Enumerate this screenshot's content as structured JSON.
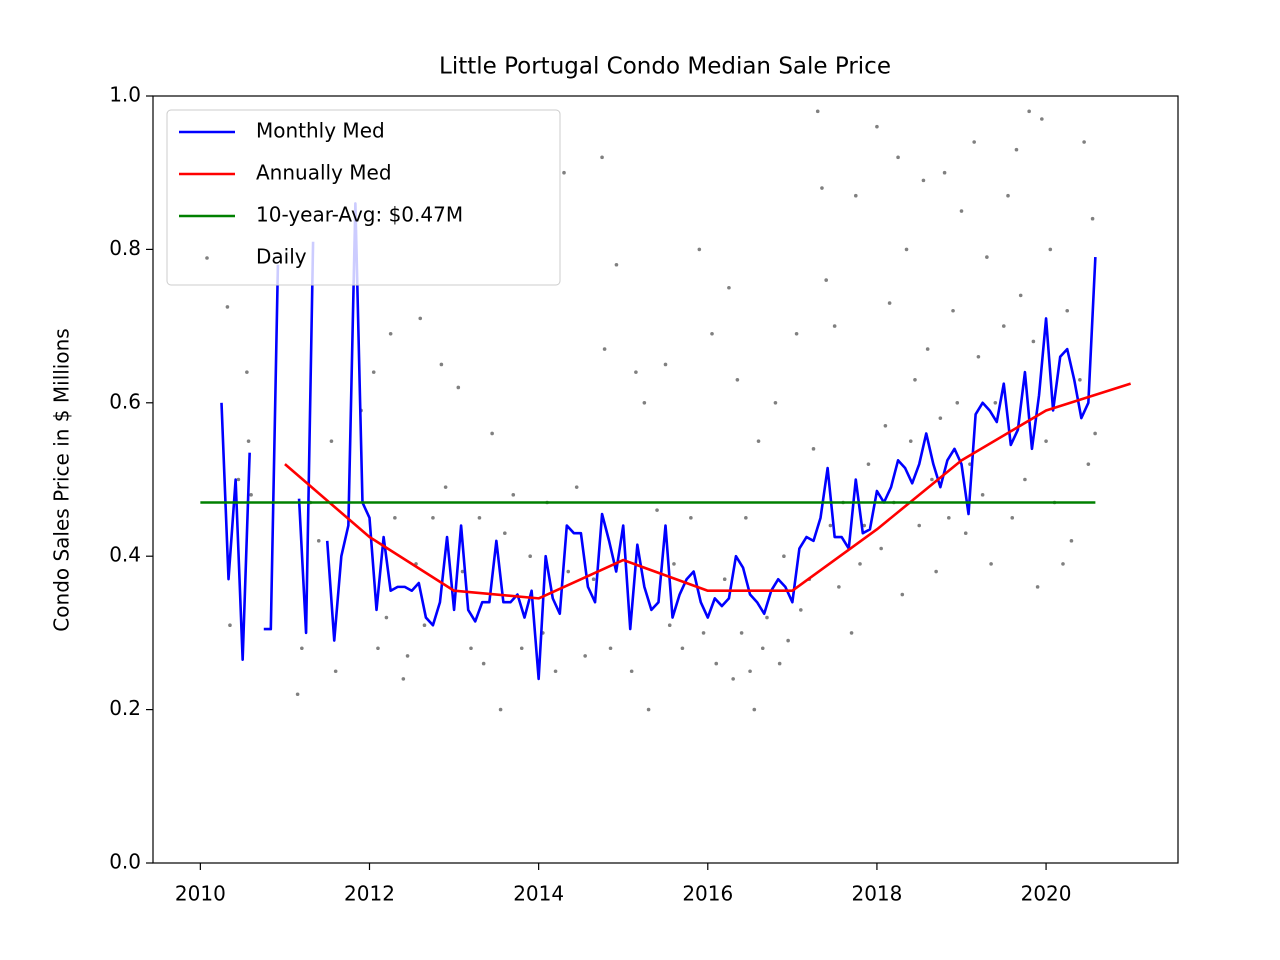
{
  "chart_data": {
    "type": "line",
    "title": "Little Portugal Condo Median Sale Price",
    "ylabel": "Condo Sales Price in $ Millions",
    "xlim": [
      2009.44,
      2021.56
    ],
    "ylim": [
      0,
      1
    ],
    "xticks": [
      2010,
      2012,
      2014,
      2016,
      2018,
      2020
    ],
    "yticks": [
      {
        "value": 0,
        "label": "0.0"
      },
      0.2,
      0.4,
      0.6,
      0.8,
      {
        "value": 1,
        "label": "1.0"
      }
    ],
    "legend": "upper left",
    "series": [
      {
        "name": "Monthly Med",
        "type": "line",
        "color": "#0000ff",
        "x": [
          2010.25,
          2010.333,
          2010.417,
          2010.5,
          2010.583,
          2010.667,
          2010.75,
          2010.833,
          2010.917,
          2011.0,
          2011.083,
          2011.167,
          2011.25,
          2011.333,
          2011.417,
          2011.5,
          2011.583,
          2011.667,
          2011.75,
          2011.833,
          2011.917,
          2012.0,
          2012.083,
          2012.167,
          2012.25,
          2012.333,
          2012.417,
          2012.5,
          2012.583,
          2012.667,
          2012.75,
          2012.833,
          2012.917,
          2013.0,
          2013.083,
          2013.167,
          2013.25,
          2013.333,
          2013.417,
          2013.5,
          2013.583,
          2013.667,
          2013.75,
          2013.833,
          2013.917,
          2014.0,
          2014.083,
          2014.167,
          2014.25,
          2014.333,
          2014.417,
          2014.5,
          2014.583,
          2014.667,
          2014.75,
          2014.833,
          2014.917,
          2015.0,
          2015.083,
          2015.167,
          2015.25,
          2015.333,
          2015.417,
          2015.5,
          2015.583,
          2015.667,
          2015.75,
          2015.833,
          2015.917,
          2016.0,
          2016.083,
          2016.167,
          2016.25,
          2016.333,
          2016.417,
          2016.5,
          2016.583,
          2016.667,
          2016.75,
          2016.833,
          2016.917,
          2017.0,
          2017.083,
          2017.167,
          2017.25,
          2017.333,
          2017.417,
          2017.5,
          2017.583,
          2017.667,
          2017.75,
          2017.833,
          2017.917,
          2018.0,
          2018.083,
          2018.167,
          2018.25,
          2018.333,
          2018.417,
          2018.5,
          2018.583,
          2018.667,
          2018.75,
          2018.833,
          2018.917,
          2019.0,
          2019.083,
          2019.167,
          2019.25,
          2019.333,
          2019.417,
          2019.5,
          2019.583,
          2019.667,
          2019.75,
          2019.833,
          2019.917,
          2020.0,
          2020.083,
          2020.167,
          2020.25,
          2020.333,
          2020.417,
          2020.5,
          2020.583
        ],
        "values": [
          0.6,
          0.37,
          0.5,
          0.265,
          0.535,
          null,
          0.305,
          0.305,
          0.78,
          null,
          null,
          0.475,
          0.3,
          0.81,
          null,
          0.42,
          0.29,
          0.4,
          0.44,
          0.86,
          0.47,
          0.45,
          0.33,
          0.425,
          0.355,
          0.36,
          0.36,
          0.355,
          0.365,
          0.32,
          0.31,
          0.34,
          0.425,
          0.33,
          0.44,
          0.33,
          0.315,
          0.34,
          0.34,
          0.42,
          0.34,
          0.34,
          0.35,
          0.32,
          0.355,
          0.24,
          0.4,
          0.345,
          0.325,
          0.44,
          0.43,
          0.43,
          0.36,
          0.34,
          0.455,
          0.42,
          0.38,
          0.44,
          0.305,
          0.415,
          0.36,
          0.33,
          0.34,
          0.44,
          0.32,
          0.35,
          0.37,
          0.38,
          0.34,
          0.32,
          0.345,
          0.335,
          0.345,
          0.4,
          0.385,
          0.35,
          0.34,
          0.325,
          0.355,
          0.37,
          0.36,
          0.34,
          0.41,
          0.425,
          0.42,
          0.45,
          0.515,
          0.425,
          0.425,
          0.41,
          0.5,
          0.43,
          0.435,
          0.485,
          0.47,
          0.49,
          0.525,
          0.515,
          0.495,
          0.52,
          0.56,
          0.52,
          0.49,
          0.525,
          0.54,
          0.52,
          0.455,
          0.585,
          0.6,
          0.59,
          0.575,
          0.625,
          0.545,
          0.565,
          0.64,
          0.54,
          0.61,
          0.71,
          0.59,
          0.66,
          0.67,
          0.63,
          0.58,
          0.6,
          0.79
        ]
      },
      {
        "name": "Annually Med",
        "type": "line",
        "color": "#ff0000",
        "x": [
          2011,
          2012,
          2013,
          2014,
          2015,
          2016,
          2017,
          2018,
          2019,
          2020,
          2021
        ],
        "values": [
          0.52,
          0.425,
          0.355,
          0.345,
          0.395,
          0.355,
          0.355,
          0.435,
          0.525,
          0.59,
          0.625
        ]
      },
      {
        "name": "10-year-Avg: $0.47M",
        "type": "line",
        "color": "#008000",
        "x": [
          2010,
          2020.583
        ],
        "values": [
          0.47,
          0.47
        ]
      },
      {
        "name": "Daily",
        "type": "scatter",
        "color": "#808080",
        "x": [
          2010.32,
          2010.35,
          2010.45,
          2010.55,
          2010.6,
          2010.57,
          2011.15,
          2011.2,
          2011.3,
          2011.4,
          2011.6,
          2011.55,
          2011.9,
          2012.05,
          2012.1,
          2012.2,
          2012.25,
          2012.3,
          2012.4,
          2012.45,
          2012.55,
          2012.6,
          2012.65,
          2012.75,
          2012.85,
          2012.9,
          2013.05,
          2013.1,
          2013.2,
          2013.3,
          2013.35,
          2013.45,
          2013.55,
          2013.6,
          2013.7,
          2013.8,
          2013.9,
          2014.05,
          2014.1,
          2014.2,
          2014.3,
          2014.35,
          2014.45,
          2014.55,
          2014.65,
          2014.75,
          2014.78,
          2014.85,
          2014.92,
          2015.0,
          2015.1,
          2015.15,
          2015.25,
          2015.3,
          2015.4,
          2015.5,
          2015.55,
          2015.6,
          2015.7,
          2015.8,
          2015.9,
          2015.95,
          2016.05,
          2016.1,
          2016.2,
          2016.25,
          2016.3,
          2016.35,
          2016.4,
          2016.45,
          2016.5,
          2016.55,
          2016.6,
          2016.65,
          2016.7,
          2016.8,
          2016.85,
          2016.9,
          2016.95,
          2017.05,
          2017.1,
          2017.2,
          2017.25,
          2017.3,
          2017.35,
          2017.4,
          2017.45,
          2017.5,
          2017.55,
          2017.6,
          2017.7,
          2017.75,
          2017.8,
          2017.85,
          2017.9,
          2018.0,
          2018.05,
          2018.1,
          2018.15,
          2018.2,
          2018.25,
          2018.3,
          2018.35,
          2018.4,
          2018.45,
          2018.5,
          2018.55,
          2018.6,
          2018.65,
          2018.7,
          2018.75,
          2018.8,
          2018.85,
          2018.9,
          2018.95,
          2019.0,
          2019.05,
          2019.1,
          2019.15,
          2019.2,
          2019.25,
          2019.3,
          2019.35,
          2019.4,
          2019.5,
          2019.55,
          2019.6,
          2019.65,
          2019.7,
          2019.75,
          2019.8,
          2019.85,
          2019.9,
          2019.95,
          2020.0,
          2020.05,
          2020.1,
          2020.2,
          2020.25,
          2020.3,
          2020.4,
          2020.45,
          2020.5,
          2020.55,
          2020.58
        ],
        "values": [
          0.725,
          0.31,
          0.5,
          0.64,
          0.48,
          0.55,
          0.22,
          0.28,
          0.47,
          0.42,
          0.25,
          0.55,
          0.59,
          0.64,
          0.28,
          0.32,
          0.69,
          0.45,
          0.24,
          0.27,
          0.39,
          0.71,
          0.31,
          0.45,
          0.65,
          0.49,
          0.62,
          0.38,
          0.28,
          0.45,
          0.26,
          0.56,
          0.2,
          0.43,
          0.48,
          0.28,
          0.4,
          0.3,
          0.47,
          0.25,
          0.9,
          0.38,
          0.49,
          0.27,
          0.37,
          0.92,
          0.67,
          0.28,
          0.78,
          0.43,
          0.25,
          0.64,
          0.6,
          0.2,
          0.46,
          0.65,
          0.31,
          0.39,
          0.28,
          0.45,
          0.8,
          0.3,
          0.69,
          0.26,
          0.37,
          0.75,
          0.24,
          0.63,
          0.3,
          0.45,
          0.25,
          0.2,
          0.55,
          0.28,
          0.32,
          0.6,
          0.26,
          0.4,
          0.29,
          0.69,
          0.33,
          0.37,
          0.54,
          0.98,
          0.88,
          0.76,
          0.44,
          0.7,
          0.36,
          0.47,
          0.3,
          0.87,
          0.39,
          0.44,
          0.52,
          0.96,
          0.41,
          0.57,
          0.73,
          0.47,
          0.92,
          0.35,
          0.8,
          0.55,
          0.63,
          0.44,
          0.89,
          0.67,
          0.5,
          0.38,
          0.58,
          0.9,
          0.45,
          0.72,
          0.6,
          0.85,
          0.43,
          0.52,
          0.94,
          0.66,
          0.48,
          0.79,
          0.39,
          0.6,
          0.7,
          0.87,
          0.45,
          0.93,
          0.74,
          0.5,
          0.98,
          0.68,
          0.36,
          0.97,
          0.55,
          0.8,
          0.47,
          0.39,
          0.72,
          0.42,
          0.63,
          0.94,
          0.52,
          0.84,
          0.56
        ]
      }
    ]
  }
}
